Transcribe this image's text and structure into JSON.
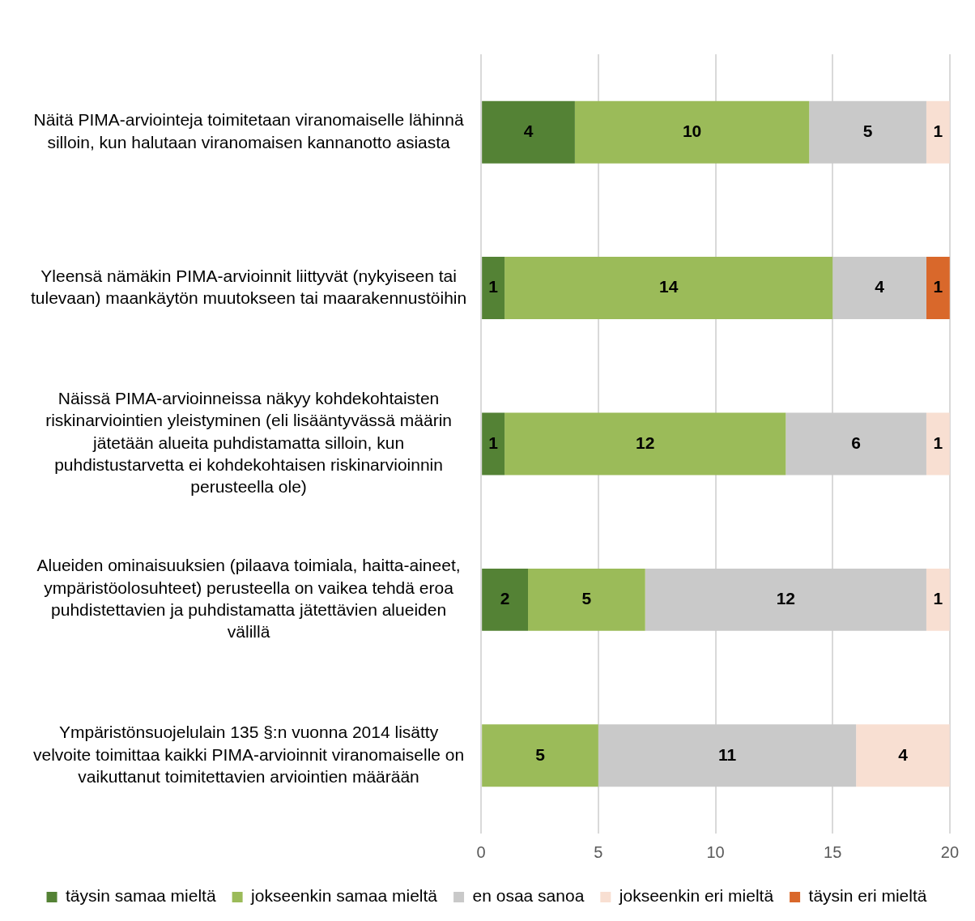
{
  "chart_data": {
    "type": "bar",
    "orientation": "horizontal",
    "stacked": true,
    "categories": [
      "Näitä PIMA-arviointeja toimitetaan viranomaiselle lähinnä silloin, kun halutaan viranomaisen kannanotto asiasta",
      "Yleensä nämäkin PIMA-arvioinnit liittyvät (nykyiseen tai tulevaan) maankäytön muutokseen tai maarakennustöihin",
      "Näissä PIMA-arvioinneissa näkyy kohdekohtaisten riskinarviointien yleistyminen (eli lisääntyvässä määrin jätetään alueita puhdistamatta silloin, kun puhdistustarvetta ei kohdekohtaisen riskinarvioinnin perusteella ole)",
      "Alueiden ominaisuuksien (pilaava toimiala, haitta-aineet, ympäristöolosuhteet) perusteella on vaikea tehdä eroa puhdistettavien ja puhdistamatta jätettävien alueiden välillä",
      "Ympäristönsuojelulain 135 §:n vuonna 2014 lisätty velvoite toimittaa kaikki PIMA-arvioinnit viranomaiselle on vaikuttanut toimitettavien arviointien määrään"
    ],
    "series": [
      {
        "name": "täysin samaa mieltä",
        "color": "#548235",
        "values": [
          4,
          1,
          1,
          2,
          null
        ]
      },
      {
        "name": "jokseenkin samaa mieltä",
        "color": "#9bbb59",
        "values": [
          10,
          14,
          12,
          5,
          5
        ]
      },
      {
        "name": "en osaa sanoa",
        "color": "#c9c9c9",
        "values": [
          5,
          4,
          6,
          12,
          11
        ]
      },
      {
        "name": "jokseenkin eri mieltä",
        "color": "#f8dfd2",
        "values": [
          1,
          null,
          1,
          1,
          4
        ]
      },
      {
        "name": "täysin eri mieltä",
        "color": "#d9682b",
        "values": [
          null,
          1,
          null,
          null,
          null
        ]
      }
    ],
    "xlim": [
      0,
      20
    ],
    "xticks": [
      0,
      5,
      10,
      15,
      20
    ],
    "grid": "x",
    "legend": "bottom",
    "data_labels": true
  }
}
